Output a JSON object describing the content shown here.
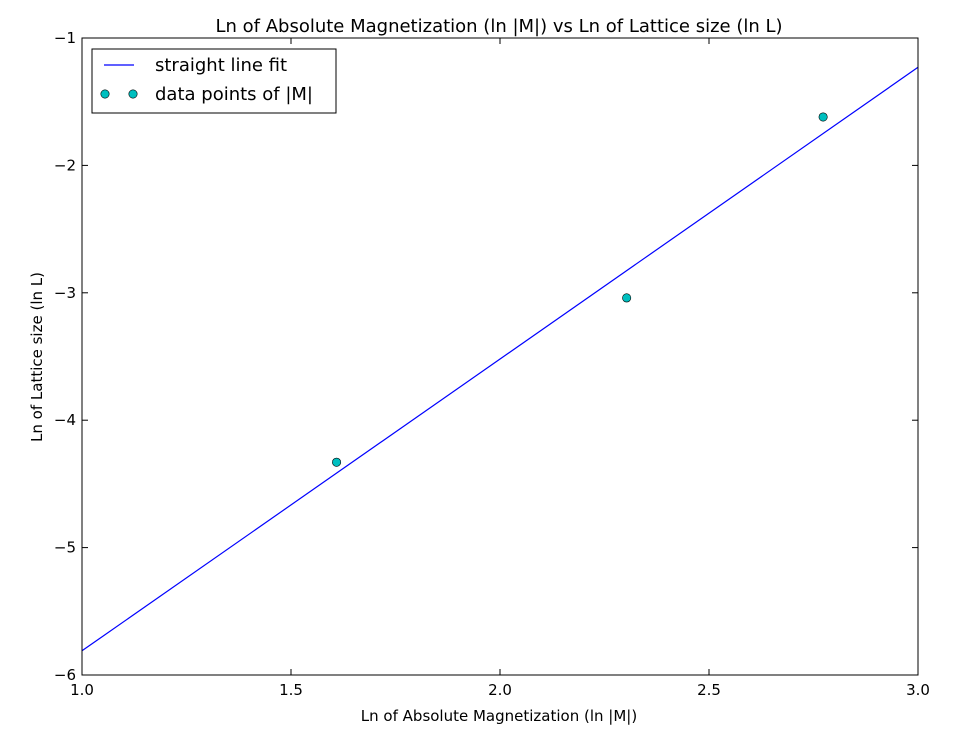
{
  "chart_data": {
    "type": "scatter",
    "title": "Ln of Absolute Magnetization (ln |M|) vs Ln of Lattice size (ln L)",
    "xlabel": "Ln of Absolute Magnetization (ln |M|)",
    "ylabel": "Ln of Lattice size (ln L)",
    "xlim": [
      1.0,
      3.0
    ],
    "ylim": [
      -6,
      -1
    ],
    "xticks": [
      "1.0",
      "1.5",
      "2.0",
      "2.5",
      "3.0"
    ],
    "yticks": [
      "−1",
      "−2",
      "−3",
      "−4",
      "−5",
      "−6"
    ],
    "xtick_values": [
      1.0,
      1.5,
      2.0,
      2.5,
      3.0
    ],
    "ytick_values": [
      -1,
      -2,
      -3,
      -4,
      -5,
      -6
    ],
    "grid": false,
    "legend_position": "top-left",
    "series": [
      {
        "name": "straight line fit",
        "kind": "line",
        "color": "#0000ff",
        "x": [
          1.0,
          3.0
        ],
        "y": [
          -5.81,
          -1.23
        ]
      },
      {
        "name": "data points of |M|",
        "kind": "markers",
        "color": "#00bfbf",
        "x": [
          1.609,
          2.303,
          2.773
        ],
        "y": [
          -4.33,
          -3.04,
          -1.62
        ]
      }
    ]
  }
}
